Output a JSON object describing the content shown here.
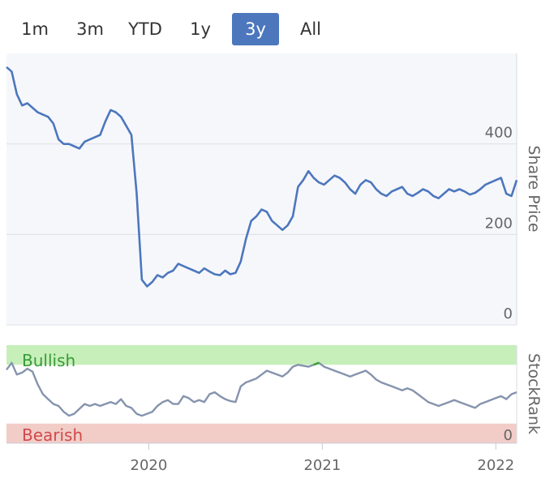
{
  "range_selector": {
    "buttons": [
      {
        "label": "1m",
        "active": false
      },
      {
        "label": "3m",
        "active": false
      },
      {
        "label": "YTD",
        "active": false
      },
      {
        "label": "1y",
        "active": false
      },
      {
        "label": "3y",
        "active": true
      },
      {
        "label": "All",
        "active": false
      }
    ]
  },
  "colors": {
    "price_line": "#4c77bd",
    "rank_line": "#8593ad",
    "bullish_band": "#c6efb9",
    "bearish_band": "#f2cdc8",
    "bullish_text": "#3a9a3a",
    "bearish_text": "#d04a4a",
    "highlight_line": "#3aa03a",
    "active_button": "#4c77bd"
  },
  "chart_data": [
    {
      "type": "line",
      "ylabel": "Share Price",
      "ylim": [
        0,
        600
      ],
      "yticks": [
        "0",
        "200",
        "400"
      ],
      "x": [
        2019.18,
        2019.21,
        2019.24,
        2019.27,
        2019.3,
        2019.33,
        2019.36,
        2019.39,
        2019.42,
        2019.45,
        2019.48,
        2019.51,
        2019.54,
        2019.57,
        2019.6,
        2019.63,
        2019.66,
        2019.69,
        2019.72,
        2019.75,
        2019.78,
        2019.81,
        2019.84,
        2019.87,
        2019.9,
        2019.93,
        2019.96,
        2019.99,
        2020.02,
        2020.05,
        2020.08,
        2020.11,
        2020.14,
        2020.17,
        2020.2,
        2020.23,
        2020.26,
        2020.29,
        2020.32,
        2020.35,
        2020.38,
        2020.41,
        2020.44,
        2020.47,
        2020.5,
        2020.53,
        2020.56,
        2020.59,
        2020.62,
        2020.65,
        2020.68,
        2020.71,
        2020.74,
        2020.77,
        2020.8,
        2020.83,
        2020.86,
        2020.89,
        2020.92,
        2020.95,
        2020.98,
        2021.01,
        2021.04,
        2021.07,
        2021.1,
        2021.13,
        2021.16,
        2021.19,
        2021.22,
        2021.25,
        2021.28,
        2021.31,
        2021.34,
        2021.37,
        2021.4,
        2021.43,
        2021.46,
        2021.49,
        2021.52,
        2021.55,
        2021.58,
        2021.61,
        2021.64,
        2021.67,
        2021.7,
        2021.73,
        2021.76,
        2021.79,
        2021.82,
        2021.85,
        2021.88,
        2021.91,
        2021.94,
        2021.97,
        2022.0,
        2022.03,
        2022.06,
        2022.09,
        2022.12
      ],
      "y": [
        570,
        560,
        510,
        485,
        490,
        480,
        470,
        465,
        460,
        445,
        410,
        400,
        400,
        395,
        390,
        405,
        410,
        415,
        420,
        450,
        475,
        470,
        460,
        440,
        420,
        290,
        100,
        85,
        95,
        110,
        105,
        115,
        120,
        135,
        130,
        125,
        120,
        115,
        125,
        118,
        112,
        110,
        120,
        112,
        115,
        140,
        190,
        230,
        240,
        255,
        250,
        230,
        220,
        210,
        220,
        240,
        305,
        320,
        340,
        325,
        315,
        310,
        320,
        330,
        325,
        315,
        300,
        290,
        310,
        320,
        315,
        300,
        290,
        285,
        295,
        300,
        305,
        290,
        285,
        292,
        300,
        295,
        285,
        280,
        290,
        300,
        295,
        300,
        295,
        288,
        292,
        300,
        310,
        315,
        320,
        325,
        290,
        285,
        320
      ],
      "series": [
        {
          "name": "Share Price",
          "values": "y"
        }
      ]
    },
    {
      "type": "line",
      "ylabel": "StockRank",
      "ylim": [
        0,
        100
      ],
      "yticks": [
        "0"
      ],
      "bands": [
        {
          "label": "Bullish",
          "from": 80,
          "to": 100
        },
        {
          "label": "Bearish",
          "from": 0,
          "to": 20
        }
      ],
      "xticks": [
        "2020",
        "2021",
        "2022"
      ],
      "xtick_values": [
        2020.0,
        2021.0,
        2022.0
      ],
      "x": [
        2019.18,
        2019.21,
        2019.24,
        2019.27,
        2019.3,
        2019.33,
        2019.36,
        2019.39,
        2019.42,
        2019.45,
        2019.48,
        2019.51,
        2019.54,
        2019.57,
        2019.6,
        2019.63,
        2019.66,
        2019.69,
        2019.72,
        2019.75,
        2019.78,
        2019.81,
        2019.84,
        2019.87,
        2019.9,
        2019.93,
        2019.96,
        2019.99,
        2020.02,
        2020.05,
        2020.08,
        2020.11,
        2020.14,
        2020.17,
        2020.2,
        2020.23,
        2020.26,
        2020.29,
        2020.32,
        2020.35,
        2020.38,
        2020.41,
        2020.44,
        2020.47,
        2020.5,
        2020.53,
        2020.56,
        2020.59,
        2020.62,
        2020.65,
        2020.68,
        2020.71,
        2020.74,
        2020.77,
        2020.8,
        2020.83,
        2020.86,
        2020.89,
        2020.92,
        2020.95,
        2020.98,
        2021.01,
        2021.04,
        2021.07,
        2021.1,
        2021.13,
        2021.16,
        2021.19,
        2021.22,
        2021.25,
        2021.28,
        2021.31,
        2021.34,
        2021.37,
        2021.4,
        2021.43,
        2021.46,
        2021.49,
        2021.52,
        2021.55,
        2021.58,
        2021.61,
        2021.64,
        2021.67,
        2021.7,
        2021.73,
        2021.76,
        2021.79,
        2021.82,
        2021.85,
        2021.88,
        2021.91,
        2021.94,
        2021.97,
        2022.0,
        2022.03,
        2022.06,
        2022.09,
        2022.12
      ],
      "y": [
        75,
        82,
        70,
        72,
        76,
        73,
        60,
        50,
        45,
        40,
        38,
        32,
        28,
        30,
        35,
        40,
        38,
        40,
        38,
        40,
        42,
        40,
        45,
        38,
        36,
        30,
        28,
        30,
        32,
        38,
        42,
        44,
        40,
        40,
        48,
        46,
        42,
        44,
        42,
        50,
        52,
        48,
        45,
        43,
        42,
        58,
        62,
        64,
        66,
        70,
        74,
        72,
        70,
        68,
        72,
        78,
        80,
        79,
        78,
        80,
        82,
        78,
        76,
        74,
        72,
        70,
        68,
        70,
        72,
        74,
        70,
        65,
        62,
        60,
        58,
        56,
        54,
        56,
        54,
        50,
        46,
        42,
        40,
        38,
        40,
        42,
        44,
        42,
        40,
        38,
        36,
        40,
        42,
        44,
        46,
        48,
        45,
        50,
        52
      ],
      "series": [
        {
          "name": "StockRank",
          "values": "y"
        }
      ]
    }
  ]
}
